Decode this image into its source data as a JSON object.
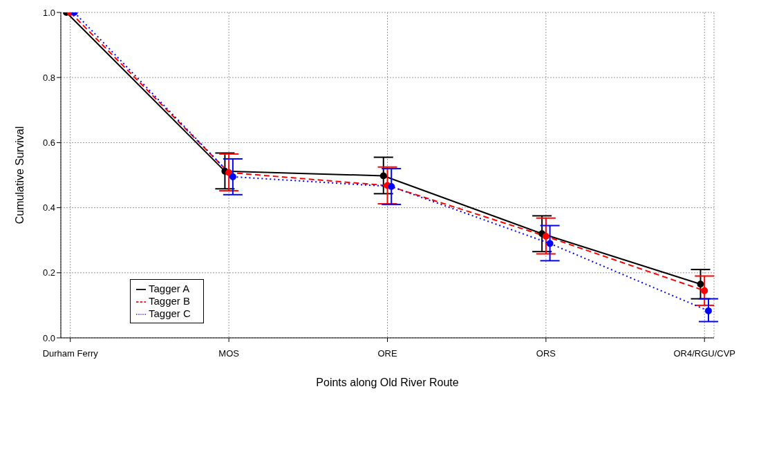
{
  "chart_data": {
    "type": "line",
    "xlabel": "Points along Old River Route",
    "ylabel": "Cumulative Survival",
    "categories": [
      "Durham Ferry",
      "MOS",
      "ORE",
      "ORS",
      "OR4/RGU/CVP"
    ],
    "series": [
      {
        "name": "Tagger A",
        "color": "#000000",
        "line_style": "solid",
        "values": [
          1.0,
          0.512,
          0.498,
          0.32,
          0.165
        ],
        "errors": [
          null,
          [
            0.458,
            0.568
          ],
          [
            0.443,
            0.555
          ],
          [
            0.265,
            0.375
          ],
          [
            0.12,
            0.21
          ]
        ]
      },
      {
        "name": "Tagger B",
        "color": "#ff0000",
        "line_style": "dashed",
        "values": [
          1.0,
          0.508,
          0.468,
          0.312,
          0.145
        ],
        "errors": [
          null,
          [
            0.452,
            0.565
          ],
          [
            0.412,
            0.525
          ],
          [
            0.258,
            0.368
          ],
          [
            0.1,
            0.19
          ]
        ]
      },
      {
        "name": "Tagger C",
        "color": "#0000ff",
        "line_style": "dotted",
        "values": [
          1.0,
          0.495,
          0.465,
          0.29,
          0.083
        ],
        "errors": [
          null,
          [
            0.44,
            0.55
          ],
          [
            0.41,
            0.52
          ],
          [
            0.237,
            0.345
          ],
          [
            0.05,
            0.12
          ]
        ]
      }
    ],
    "ylim": [
      0,
      1
    ],
    "yticks": [
      {
        "value": 0,
        "label": "0.0"
      },
      {
        "value": 0.2,
        "label": "0.2"
      },
      {
        "value": 0.4,
        "label": "0.4"
      },
      {
        "value": 0.6,
        "label": "0.6"
      },
      {
        "value": 0.8,
        "label": "0.8"
      },
      {
        "value": 1,
        "label": "1.0"
      }
    ],
    "grid": true,
    "legend": "bottom left",
    "marker": "circle"
  }
}
